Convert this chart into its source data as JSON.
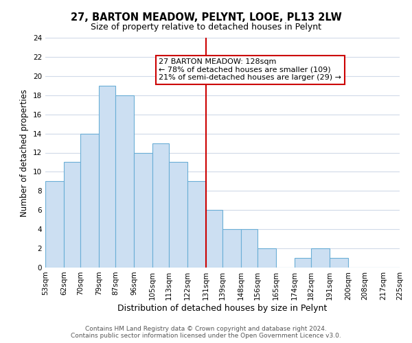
{
  "title": "27, BARTON MEADOW, PELYNT, LOOE, PL13 2LW",
  "subtitle": "Size of property relative to detached houses in Pelynt",
  "xlabel": "Distribution of detached houses by size in Pelynt",
  "ylabel": "Number of detached properties",
  "bin_edges": [
    53,
    62,
    70,
    79,
    87,
    96,
    105,
    113,
    122,
    131,
    139,
    148,
    156,
    165,
    174,
    182,
    191,
    200,
    208,
    217,
    225
  ],
  "counts": [
    9,
    11,
    14,
    19,
    18,
    12,
    13,
    11,
    9,
    6,
    4,
    4,
    2,
    0,
    1,
    2,
    1,
    0,
    0,
    0
  ],
  "bar_color": "#ccdff2",
  "bar_edge_color": "#6aaed6",
  "ref_line_x": 131,
  "ref_line_color": "#cc0000",
  "annotation_title": "27 BARTON MEADOW: 128sqm",
  "annotation_line1": "← 78% of detached houses are smaller (109)",
  "annotation_line2": "21% of semi-detached houses are larger (29) →",
  "annotation_box_color": "#ffffff",
  "annotation_box_edge": "#cc0000",
  "ylim": [
    0,
    24
  ],
  "footer1": "Contains HM Land Registry data © Crown copyright and database right 2024.",
  "footer2": "Contains public sector information licensed under the Open Government Licence v3.0.",
  "tick_labels": [
    "53sqm",
    "62sqm",
    "70sqm",
    "79sqm",
    "87sqm",
    "96sqm",
    "105sqm",
    "113sqm",
    "122sqm",
    "131sqm",
    "139sqm",
    "148sqm",
    "156sqm",
    "165sqm",
    "174sqm",
    "182sqm",
    "191sqm",
    "200sqm",
    "208sqm",
    "217sqm",
    "225sqm"
  ],
  "background_color": "#ffffff",
  "grid_color": "#d0dae8",
  "title_fontsize": 10.5,
  "subtitle_fontsize": 9,
  "ylabel_fontsize": 8.5,
  "xlabel_fontsize": 9,
  "tick_fontsize": 7.5,
  "annotation_fontsize": 8,
  "footer_fontsize": 6.5
}
